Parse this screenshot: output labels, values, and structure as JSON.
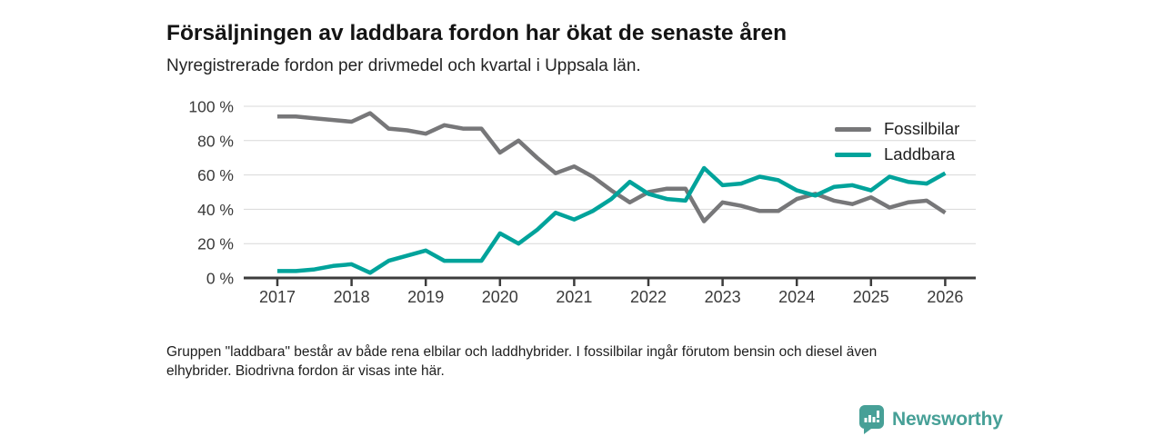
{
  "header": {
    "title": "Försäljningen av laddbara fordon har ökat de senaste åren",
    "subtitle": "Nyregistrerade fordon per drivmedel och kvartal i Uppsala län."
  },
  "chart_data": {
    "type": "line",
    "title": "Försäljningen av laddbara fordon har ökat de senaste åren",
    "subtitle": "Nyregistrerade fordon per drivmedel och kvartal i Uppsala län.",
    "x_unit": "kvartal",
    "x_tick_labels": [
      "2017",
      "2018",
      "2019",
      "2020",
      "2021",
      "2022",
      "2023",
      "2024",
      "2025",
      "2026"
    ],
    "x_quarters": [
      "2017-Q1",
      "2017-Q2",
      "2017-Q3",
      "2017-Q4",
      "2018-Q1",
      "2018-Q2",
      "2018-Q3",
      "2018-Q4",
      "2019-Q1",
      "2019-Q2",
      "2019-Q3",
      "2019-Q4",
      "2020-Q1",
      "2020-Q2",
      "2020-Q3",
      "2020-Q4",
      "2021-Q1",
      "2021-Q2",
      "2021-Q3",
      "2021-Q4",
      "2022-Q1",
      "2022-Q2",
      "2022-Q3",
      "2022-Q4",
      "2023-Q1",
      "2023-Q2",
      "2023-Q3",
      "2023-Q4",
      "2024-Q1",
      "2024-Q2",
      "2024-Q3",
      "2024-Q4",
      "2025-Q1",
      "2025-Q2",
      "2025-Q3",
      "2025-Q4",
      "2026-Q1"
    ],
    "ylim": [
      0,
      100
    ],
    "ytick_values": [
      0,
      20,
      40,
      60,
      80,
      100
    ],
    "ytick_labels": [
      "0 %",
      "20 %",
      "40 %",
      "60 %",
      "80 %",
      "100 %"
    ],
    "grid": "horizontal-only",
    "legend_position": "top-right",
    "series": [
      {
        "name": "Fossilbilar",
        "color": "#777779",
        "values": [
          94,
          94,
          93,
          92,
          91,
          96,
          87,
          86,
          84,
          89,
          87,
          87,
          73,
          80,
          70,
          61,
          65,
          59,
          51,
          44,
          50,
          52,
          52,
          33,
          44,
          42,
          39,
          39,
          46,
          49,
          45,
          43,
          47,
          41,
          44,
          45,
          38
        ]
      },
      {
        "name": "Laddbara",
        "color": "#00a39b",
        "values": [
          4,
          4,
          5,
          7,
          8,
          3,
          10,
          13,
          16,
          10,
          10,
          10,
          26,
          20,
          28,
          38,
          34,
          39,
          46,
          56,
          49,
          46,
          45,
          64,
          54,
          55,
          59,
          57,
          51,
          48,
          53,
          54,
          51,
          59,
          56,
          55,
          61
        ]
      }
    ]
  },
  "footnote": "Gruppen \"laddbara\" består av både rena elbilar och laddhybrider. I fossilbilar ingår förutom bensin och diesel även\nelhybrider. Biodrivna fordon är visas inte här.",
  "logo": {
    "text": "Newsworthy",
    "color": "#47a097",
    "icon": "newsworthy-speech-bubble-bar-chart-icon"
  }
}
